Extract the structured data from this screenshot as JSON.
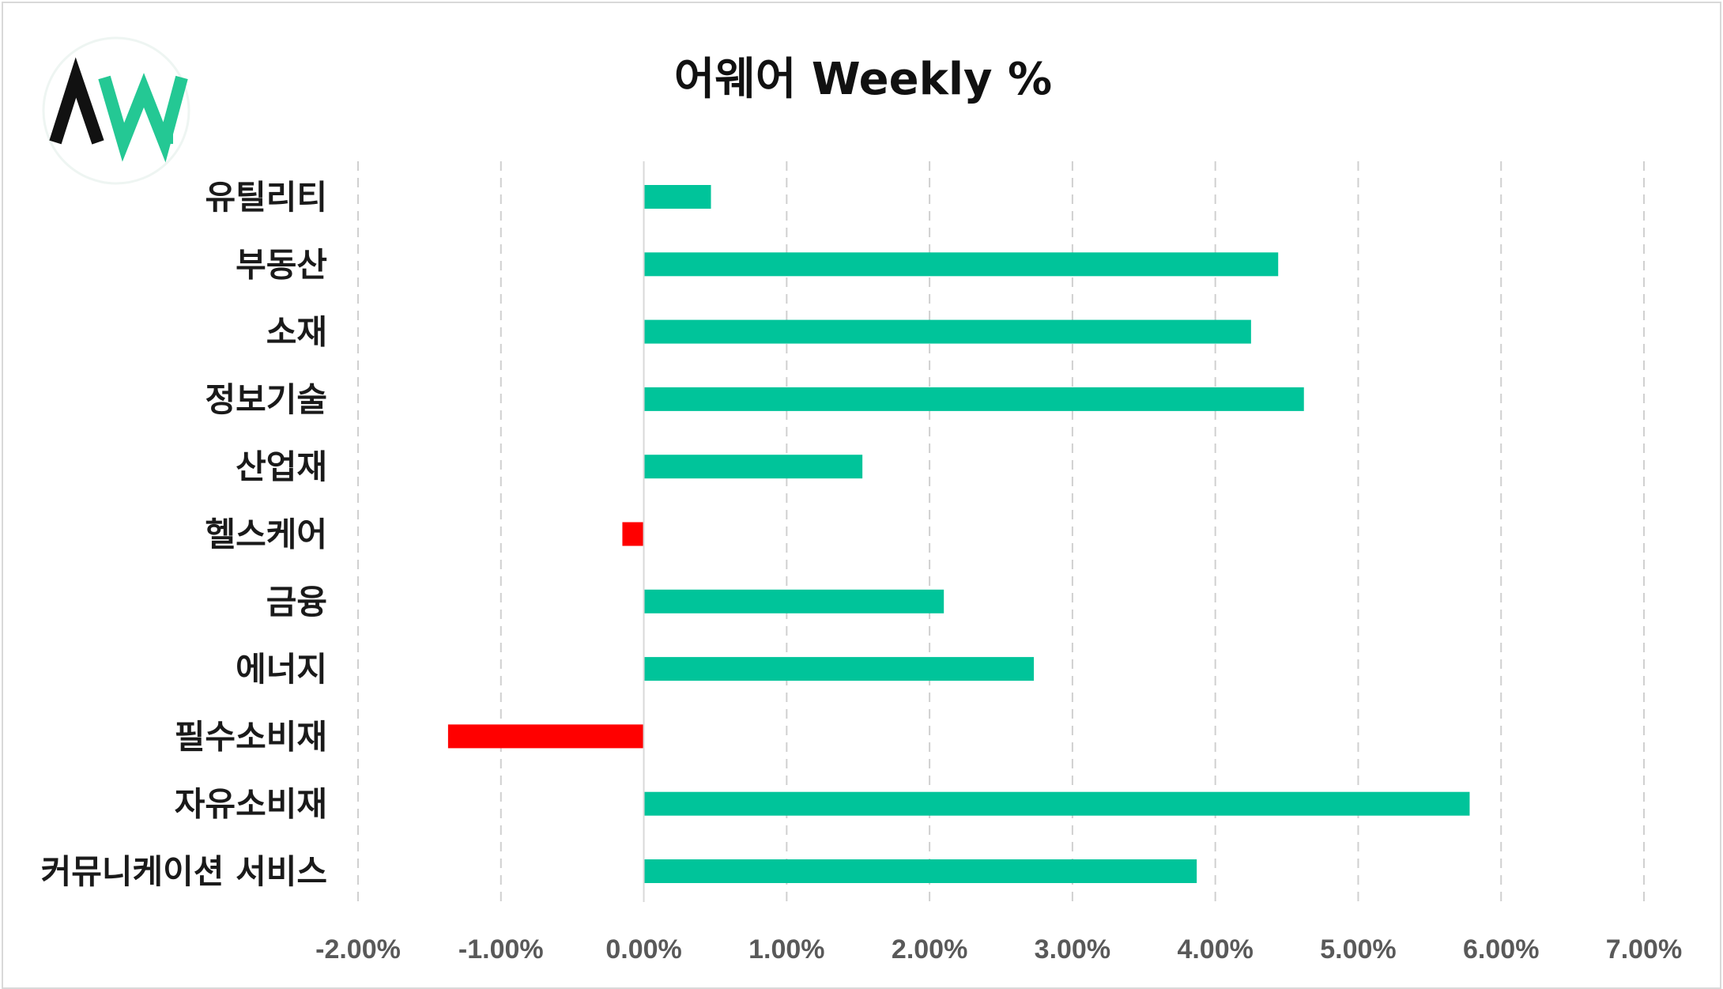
{
  "logo": {
    "icon": "aw-logo-icon",
    "dark_color": "#111111",
    "accent_color": "#24c894"
  },
  "chart_data": {
    "type": "bar",
    "orientation": "horizontal",
    "title": "어웨어 Weekly %",
    "xlabel": "",
    "ylabel": "",
    "xlim": [
      -2,
      7
    ],
    "x_ticks": [
      -2,
      -1,
      0,
      1,
      2,
      3,
      4,
      5,
      6,
      7
    ],
    "x_tick_labels": [
      "-2.00%",
      "-1.00%",
      "0.00%",
      "1.00%",
      "2.00%",
      "3.00%",
      "4.00%",
      "5.00%",
      "6.00%",
      "7.00%"
    ],
    "grid": "vertical dashed",
    "legend": "none",
    "positive_color": "#00c49a",
    "negative_color": "#ff0000",
    "categories": [
      "유틸리티",
      "부동산",
      "소재",
      "정보기술",
      "산업재",
      "헬스케어",
      "금융",
      "에너지",
      "필수소비재",
      "자유소비재",
      "커뮤니케이션 서비스"
    ],
    "values": [
      0.47,
      4.44,
      4.25,
      4.62,
      1.53,
      -0.15,
      2.1,
      2.73,
      -1.37,
      5.78,
      3.87
    ]
  }
}
